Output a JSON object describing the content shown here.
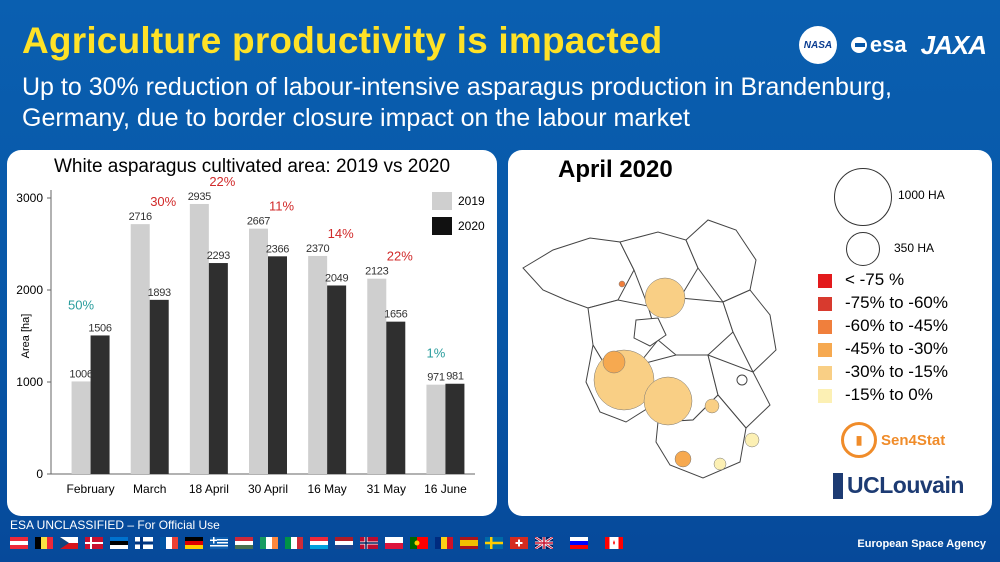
{
  "header": {
    "title": "Agriculture productivity is impacted",
    "subtitle": "Up to 30% reduction of labour-intensive asparagus production in Brandenburg, Germany, due to border closure impact on the labour market",
    "logos": {
      "nasa": "NASA",
      "esa": "esa",
      "jaxa": "JAXA"
    }
  },
  "chart_data": {
    "type": "bar",
    "title": "White asparagus cultivated area: 2019 vs 2020",
    "xlabel": "",
    "ylabel": "Area [ha]",
    "ylim": [
      0,
      3000
    ],
    "yticks": [
      0,
      1000,
      2000,
      3000
    ],
    "categories": [
      "February",
      "March",
      "18 April",
      "30 April",
      "16 May",
      "31 May",
      "16 June"
    ],
    "series": [
      {
        "name": "2019",
        "values": [
          1006,
          2716,
          2935,
          2667,
          2370,
          2123,
          971
        ],
        "color": "#cfcfcf"
      },
      {
        "name": "2020",
        "values": [
          1506,
          1893,
          2293,
          2366,
          2049,
          1656,
          981
        ],
        "color": "#2f2f2f"
      }
    ],
    "change_labels": [
      {
        "text": "50%",
        "color": "#2a9d9d"
      },
      {
        "text": "30%",
        "color": "#d12a2a"
      },
      {
        "text": "22%",
        "color": "#d12a2a"
      },
      {
        "text": "11%",
        "color": "#d12a2a"
      },
      {
        "text": "14%",
        "color": "#d12a2a"
      },
      {
        "text": "22%",
        "color": "#d12a2a"
      },
      {
        "text": "1%",
        "color": "#2a9d9d"
      }
    ],
    "grid": false,
    "legend_position": "top-right"
  },
  "map": {
    "title": "April 2020",
    "size_legend": [
      "1000 HA",
      "350 HA"
    ],
    "classes": [
      {
        "label": "< -75 %",
        "color": "#e31a1c"
      },
      {
        "label": "-75% to -60%",
        "color": "#d83a2e"
      },
      {
        "label": "-60% to -45%",
        "color": "#f07f3c"
      },
      {
        "label": "-45% to -30%",
        "color": "#f6a950"
      },
      {
        "label": "-30% to -15%",
        "color": "#f9cf85"
      },
      {
        "label": "-15% to 0%",
        "color": "#fcf0b4"
      }
    ],
    "partner_logos": {
      "sen4stat": "Sen4Stat",
      "uclouvain": "UCLouvain"
    }
  },
  "footer": {
    "classification": "ESA UNCLASSIFIED – For Official Use",
    "agency": "European Space Agency"
  }
}
